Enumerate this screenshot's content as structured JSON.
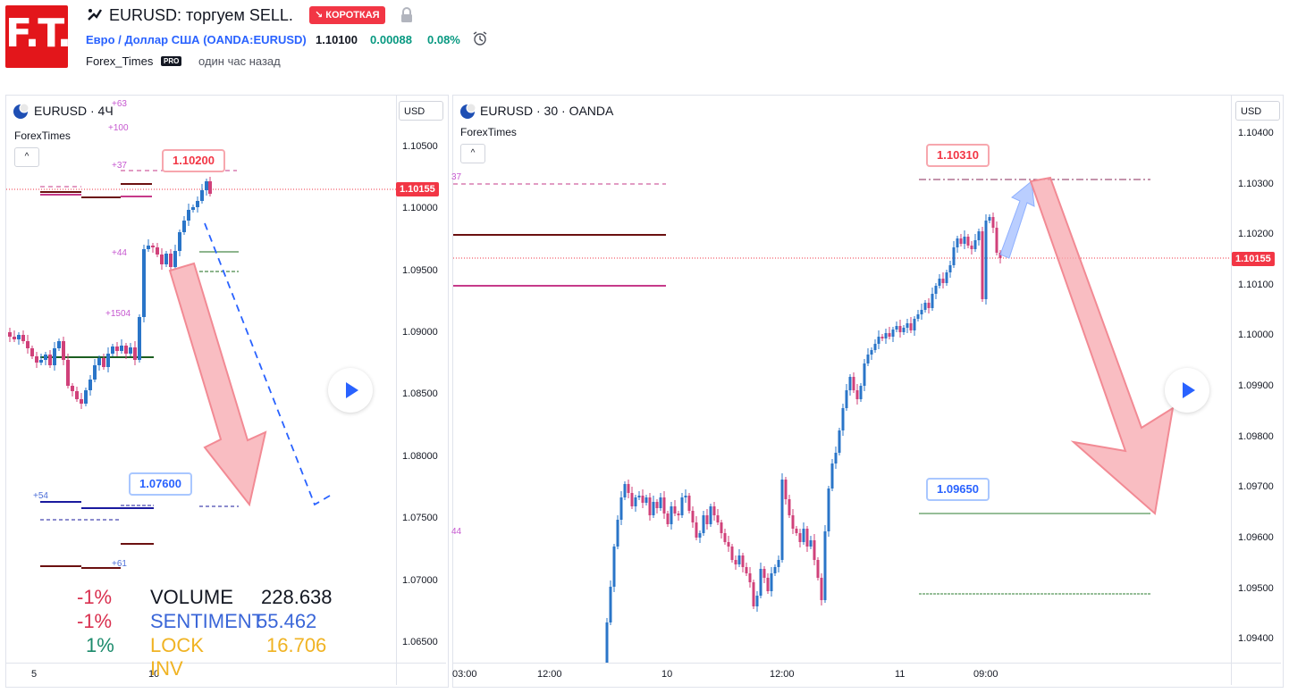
{
  "header": {
    "logo_text": "F.T.",
    "title": "EURUSD: торгуем SELL.",
    "badge": "↘ КОРОТКАЯ",
    "symbol_name": "Евро / Доллар США",
    "symbol_exchange": "(OANDA:EURUSD)",
    "price": "1.10100",
    "change": "0.00088",
    "change_pct": "0.08%",
    "author": "Forex_Times",
    "author_badge": "PRO",
    "published": "один час назад",
    "colors": {
      "brand": "#e3161b",
      "up": "#089981",
      "down": "#f23645",
      "link": "#2962ff"
    }
  },
  "left_chart": {
    "label": "EURUSD · 4Ч",
    "author": "ForexTimes",
    "collapse": "^",
    "currency": "USD",
    "price_ticks": [
      "1.10500",
      "1.10000",
      "1.09500",
      "1.09000",
      "1.08500",
      "1.08000",
      "1.07500",
      "1.07000",
      "1.06500"
    ],
    "time_ticks": [
      "5",
      "10"
    ],
    "current_price": "1.10155",
    "target_callout": "1.10200",
    "stop_callout": "1.07600",
    "level_labels": [
      "+63",
      "+100",
      "+37",
      "+44",
      "+1504",
      "+54",
      "+61"
    ],
    "stats": [
      {
        "pct": "-1%",
        "name": "VOLUME",
        "value": "228.638",
        "pct_color": "#d9304f",
        "name_color": "#131722"
      },
      {
        "pct": "-1%",
        "name": "SENTIMENT",
        "value": "55.462",
        "pct_color": "#d9304f",
        "name_color": "#3a66d8"
      },
      {
        "pct": "1%",
        "name": "LOCK INV",
        "value": "16.706",
        "pct_color": "#1b8a6b",
        "name_color": "#f0b323"
      }
    ]
  },
  "right_chart": {
    "label": "EURUSD · 30 · OANDA",
    "author": "ForexTimes",
    "collapse": "^",
    "currency": "USD",
    "price_ticks": [
      "1.10400",
      "1.10300",
      "1.10200",
      "1.10100",
      "1.10000",
      "1.09900",
      "1.09800",
      "1.09700",
      "1.09600",
      "1.09500",
      "1.09400"
    ],
    "time_ticks": [
      "03:00",
      "12:00",
      "10",
      "12:00",
      "11",
      "09:00"
    ],
    "current_price": "1.10155",
    "top_callout": "1.10310",
    "bottom_callout": "1.09650",
    "edge_labels": [
      "37",
      "44"
    ]
  }
}
